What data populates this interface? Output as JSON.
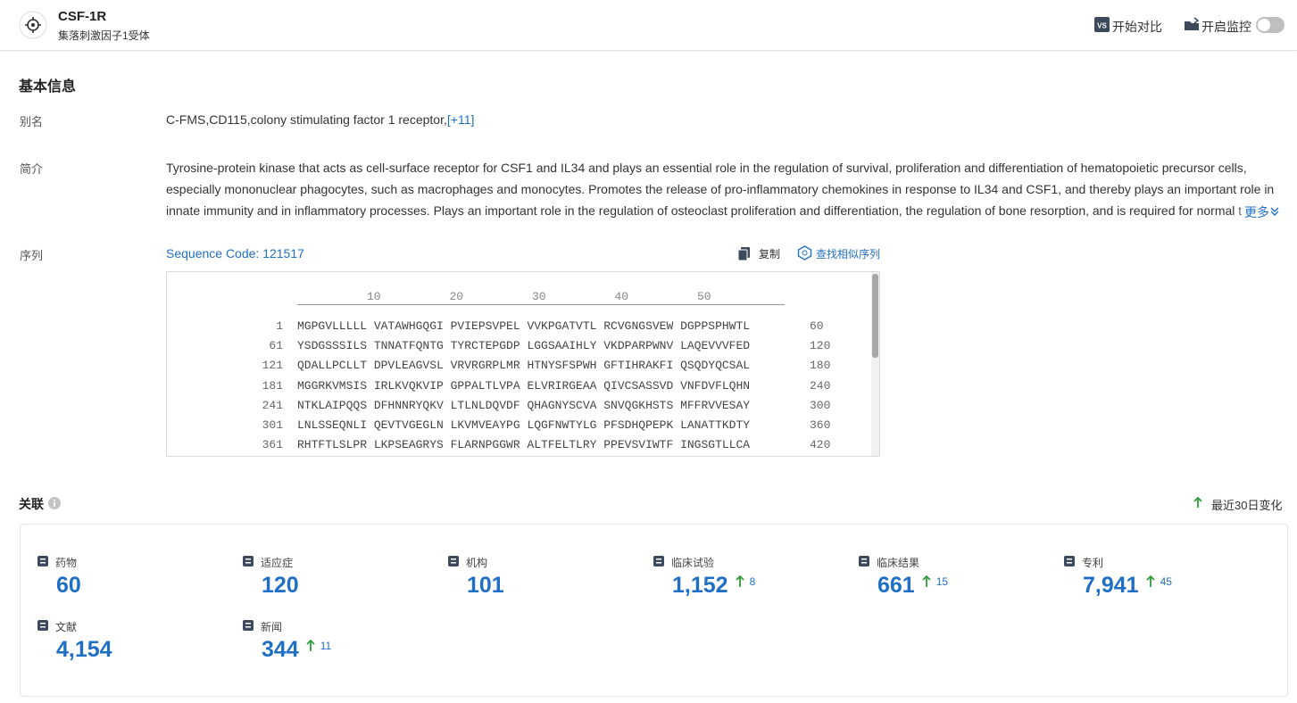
{
  "header": {
    "title": "CSF-1R",
    "subtitle": "集落刺激因子1受体",
    "compare": "开始对比",
    "monitor": "开启监控"
  },
  "basic": {
    "heading": "基本信息",
    "alias_label": "别名",
    "alias": "C-FMS,CD115,colony stimulating factor 1 receptor,",
    "alias_more": "[+11]",
    "intro_label": "简介",
    "intro": "Tyrosine-protein kinase that acts as cell-surface receptor for CSF1 and IL34 and plays an essential role in the regulation of survival, proliferation and differentiation of hematopoietic precursor cells, especially mononuclear phagocytes, such as macrophages and monocytes. Promotes the release of pro-inflammatory chemokines in response to IL34 and CSF1, and thereby plays an important role in innate immunity and in inflammatory processes. Plays an important role in the regulation of osteoclast proliferation and differentiation, the regulation of bone resorption, and is required for normal t",
    "more": "更多",
    "seq_label": "序列",
    "seq_code": "Sequence Code: 121517",
    "copy": "复制",
    "find_similar": "查找相似序列",
    "ruler": [
      "10",
      "20",
      "30",
      "40",
      "50"
    ],
    "rows": [
      {
        "start": "1",
        "seq": "MGPGVLLLLL VATAWHGQGI PVIEPSVPEL VVKPGATVTL RCVGNGSVEW DGPPSPHWTL",
        "end": "60"
      },
      {
        "start": "61",
        "seq": "YSDGSSSILS TNNATFQNTG TYRCTEPGDP LGGSAAIHLY VKDPARPWNV LAQEVVVFED",
        "end": "120"
      },
      {
        "start": "121",
        "seq": "QDALLPCLLT DPVLEAGVSL VRVRGRPLMR HTNYSFSPWH GFTIHRAKFI QSQDYQCSAL",
        "end": "180"
      },
      {
        "start": "181",
        "seq": "MGGRKVMSIS IRLKVQKVIP GPPALTLVPA ELVRIRGEAA QIVCSASSVD VNFDVFLQHN",
        "end": "240"
      },
      {
        "start": "241",
        "seq": "NTKLAIPQQS DFHNNRYQKV LTLNLDQVDF QHAGNYSCVA SNVQGKHSTS MFFRVVESAY",
        "end": "300"
      },
      {
        "start": "301",
        "seq": "LNLSSEQNLI QEVTVGEGLN LKVMVEAYPG LQGFNWTYLG PFSDHQPEPK LANATTKDTY",
        "end": "360"
      },
      {
        "start": "361",
        "seq": "RHTFTLSLPR LKPSEAGRYS FLARNPGGWR ALTFELTLRY PPEVSVIWTF INGSGTLLCA",
        "end": "420"
      }
    ]
  },
  "relations": {
    "heading": "关联",
    "recent": "最近30日变化",
    "items": [
      {
        "label": "药物",
        "value": "60"
      },
      {
        "label": "适应症",
        "value": "120"
      },
      {
        "label": "机构",
        "value": "101"
      },
      {
        "label": "临床试验",
        "value": "1,152",
        "change": "8"
      },
      {
        "label": "临床结果",
        "value": "661",
        "change": "15"
      },
      {
        "label": "专利",
        "value": "7,941",
        "change": "45"
      },
      {
        "label": "文献",
        "value": "4,154"
      },
      {
        "label": "新闻",
        "value": "344",
        "change": "11"
      }
    ]
  }
}
